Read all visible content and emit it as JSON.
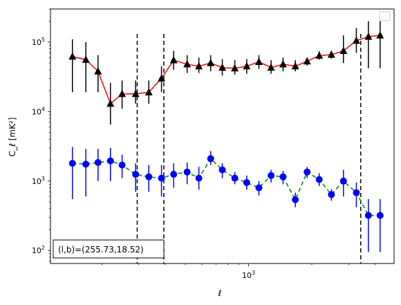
{
  "chart_data": {
    "type": "scatter",
    "xscale": "log",
    "yscale": "log",
    "xlabel": "ℓ",
    "ylabel": "C_ℓ [mK²]",
    "xlim": [
      114,
      4930
    ],
    "ylim": [
      65,
      300000
    ],
    "x_ticks": [
      {
        "value": 1000,
        "mantissa": "10",
        "exp": "3"
      }
    ],
    "y_ticks": [
      {
        "value": 100,
        "mantissa": "10",
        "exp": "2"
      },
      {
        "value": 1000,
        "mantissa": "10",
        "exp": "3"
      },
      {
        "value": 10000,
        "mantissa": "10",
        "exp": "4"
      },
      {
        "value": 100000,
        "mantissa": "10",
        "exp": "5"
      }
    ],
    "vlines": [
      295,
      395,
      3420
    ],
    "annotation": "(l,b)=(255.73,18.52)",
    "legend": "top-right",
    "series": [
      {
        "marker": "triangle",
        "color": "#000000",
        "line_color": "#ff0000",
        "line_style": "solid",
        "x": [
          145,
          168,
          192,
          220,
          250,
          290,
          335,
          385,
          440,
          510,
          580,
          660,
          750,
          860,
          980,
          1120,
          1280,
          1460,
          1670,
          1900,
          2170,
          2480,
          2830,
          3260,
          3720,
          4230
        ],
        "y": [
          62000,
          56000,
          38000,
          13000,
          18000,
          18000,
          19000,
          30000,
          55000,
          48000,
          45000,
          50000,
          43000,
          42000,
          45000,
          52000,
          43000,
          48000,
          45000,
          53000,
          64000,
          66000,
          75000,
          105000,
          120000,
          125000
        ],
        "ylo": [
          19000,
          19000,
          19000,
          6500,
          11000,
          13000,
          13000,
          19000,
          40000,
          36000,
          36000,
          38000,
          33000,
          34000,
          35000,
          41000,
          35000,
          38000,
          38000,
          46000,
          56000,
          58000,
          50000,
          70000,
          42000,
          42000
        ],
        "yhi": [
          110000,
          100000,
          65000,
          26000,
          28000,
          28000,
          28000,
          45000,
          75000,
          65000,
          60000,
          65000,
          57000,
          55000,
          57000,
          65000,
          55000,
          60000,
          55000,
          60000,
          74000,
          75000,
          125000,
          160000,
          200000,
          200000
        ]
      },
      {
        "marker": "circle",
        "color": "#0000ff",
        "line_color": "#008000",
        "line_style": "dashed",
        "x": [
          145,
          168,
          192,
          220,
          250,
          290,
          335,
          385,
          440,
          510,
          580,
          660,
          750,
          860,
          980,
          1120,
          1280,
          1460,
          1670,
          1900,
          2170,
          2480,
          2830,
          3260,
          3720,
          4230
        ],
        "y": [
          1800,
          1750,
          1850,
          1950,
          1700,
          1250,
          1150,
          1100,
          1250,
          1350,
          1100,
          2100,
          1450,
          1100,
          950,
          800,
          1200,
          1150,
          540,
          1350,
          1050,
          640,
          1000,
          680,
          320,
          320
        ],
        "ylo": [
          550,
          600,
          1000,
          1000,
          1100,
          700,
          700,
          600,
          800,
          900,
          750,
          1700,
          1100,
          900,
          750,
          620,
          950,
          900,
          420,
          1100,
          850,
          520,
          600,
          420,
          95,
          95
        ],
        "yhi": [
          3100,
          2900,
          2900,
          3000,
          2400,
          1800,
          1700,
          1700,
          1800,
          1850,
          1600,
          2700,
          1800,
          1350,
          1200,
          1000,
          1450,
          1400,
          680,
          1600,
          1300,
          760,
          1450,
          950,
          550,
          550
        ]
      }
    ]
  }
}
